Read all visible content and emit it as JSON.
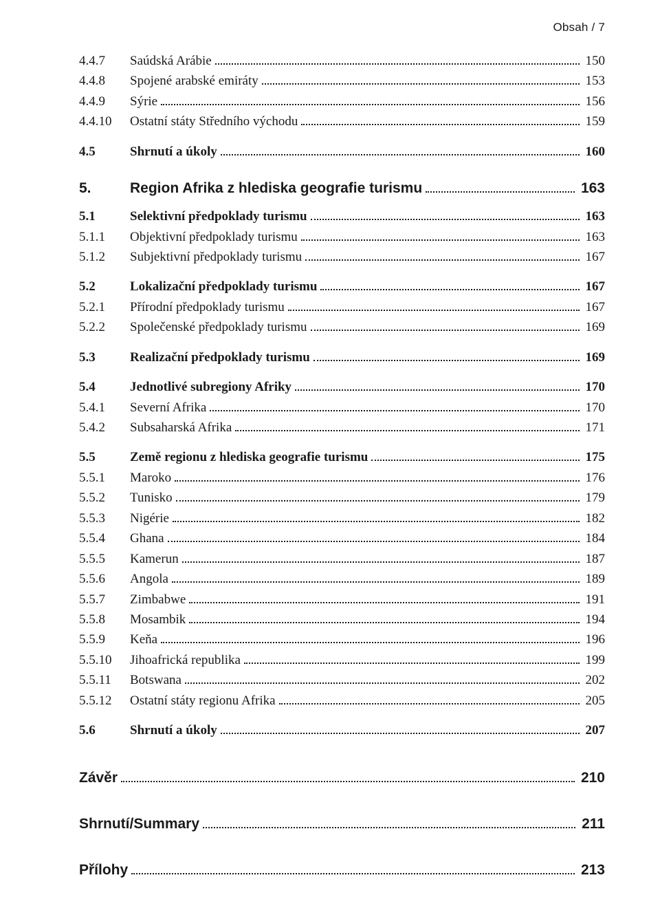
{
  "header": "Obsah  /  7",
  "groups": [
    [
      {
        "num": "4.4.7",
        "title": "Saúdská Arábie",
        "page": "150",
        "bold": false
      },
      {
        "num": "4.4.8",
        "title": "Spojené arabské emiráty",
        "page": "153",
        "bold": false
      },
      {
        "num": "4.4.9",
        "title": "Sýrie",
        "page": "156",
        "bold": false
      },
      {
        "num": "4.4.10",
        "title": "Ostatní státy Středního východu",
        "page": "159",
        "bold": false
      }
    ],
    [
      {
        "num": "4.5",
        "title": "Shrnutí a úkoly",
        "page": "160",
        "bold": true
      }
    ]
  ],
  "chapter": {
    "num": "5.",
    "title": "Region Afrika z hlediska geografie turismu",
    "page": "163"
  },
  "groups2": [
    [
      {
        "num": "5.1",
        "title": "Selektivní předpoklady turismu",
        "page": "163",
        "bold": true
      },
      {
        "num": "5.1.1",
        "title": "Objektivní předpoklady turismu",
        "page": "163",
        "bold": false
      },
      {
        "num": "5.1.2",
        "title": "Subjektivní předpoklady turismu",
        "page": "167",
        "bold": false
      }
    ],
    [
      {
        "num": "5.2",
        "title": "Lokalizační předpoklady turismu",
        "page": "167",
        "bold": true
      },
      {
        "num": "5.2.1",
        "title": "Přírodní předpoklady turismu",
        "page": "167",
        "bold": false
      },
      {
        "num": "5.2.2",
        "title": "Společenské předpoklady turismu",
        "page": "169",
        "bold": false
      }
    ],
    [
      {
        "num": "5.3",
        "title": "Realizační předpoklady turismu",
        "page": "169",
        "bold": true
      }
    ],
    [
      {
        "num": "5.4",
        "title": "Jednotlivé subregiony Afriky",
        "page": "170",
        "bold": true
      },
      {
        "num": "5.4.1",
        "title": "Severní Afrika",
        "page": "170",
        "bold": false
      },
      {
        "num": "5.4.2",
        "title": "Subsaharská Afrika",
        "page": "171",
        "bold": false
      }
    ],
    [
      {
        "num": "5.5",
        "title": "Země regionu z hlediska geografie turismu",
        "page": "175",
        "bold": true
      },
      {
        "num": "5.5.1",
        "title": "Maroko",
        "page": "176",
        "bold": false
      },
      {
        "num": "5.5.2",
        "title": "Tunisko",
        "page": "179",
        "bold": false
      },
      {
        "num": "5.5.3",
        "title": "Nigérie",
        "page": "182",
        "bold": false
      },
      {
        "num": "5.5.4",
        "title": "Ghana",
        "page": "184",
        "bold": false
      },
      {
        "num": "5.5.5",
        "title": "Kamerun",
        "page": "187",
        "bold": false
      },
      {
        "num": "5.5.6",
        "title": "Angola",
        "page": "189",
        "bold": false
      },
      {
        "num": "5.5.7",
        "title": "Zimbabwe",
        "page": "191",
        "bold": false
      },
      {
        "num": "5.5.8",
        "title": "Mosambik",
        "page": "194",
        "bold": false
      },
      {
        "num": "5.5.9",
        "title": "Keňa",
        "page": "196",
        "bold": false
      },
      {
        "num": "5.5.10",
        "title": "Jihoafrická republika",
        "page": "199",
        "bold": false
      },
      {
        "num": "5.5.11",
        "title": "Botswana",
        "page": "202",
        "bold": false
      },
      {
        "num": "5.5.12",
        "title": "Ostatní státy regionu Afrika",
        "page": "205",
        "bold": false
      }
    ],
    [
      {
        "num": "5.6",
        "title": "Shrnutí a úkoly",
        "page": "207",
        "bold": true
      }
    ]
  ],
  "endSections": [
    {
      "title": "Závěr",
      "page": "210"
    },
    {
      "title": "Shrnutí/Summary",
      "page": "211"
    },
    {
      "title": "Přílohy",
      "page": "213"
    }
  ]
}
